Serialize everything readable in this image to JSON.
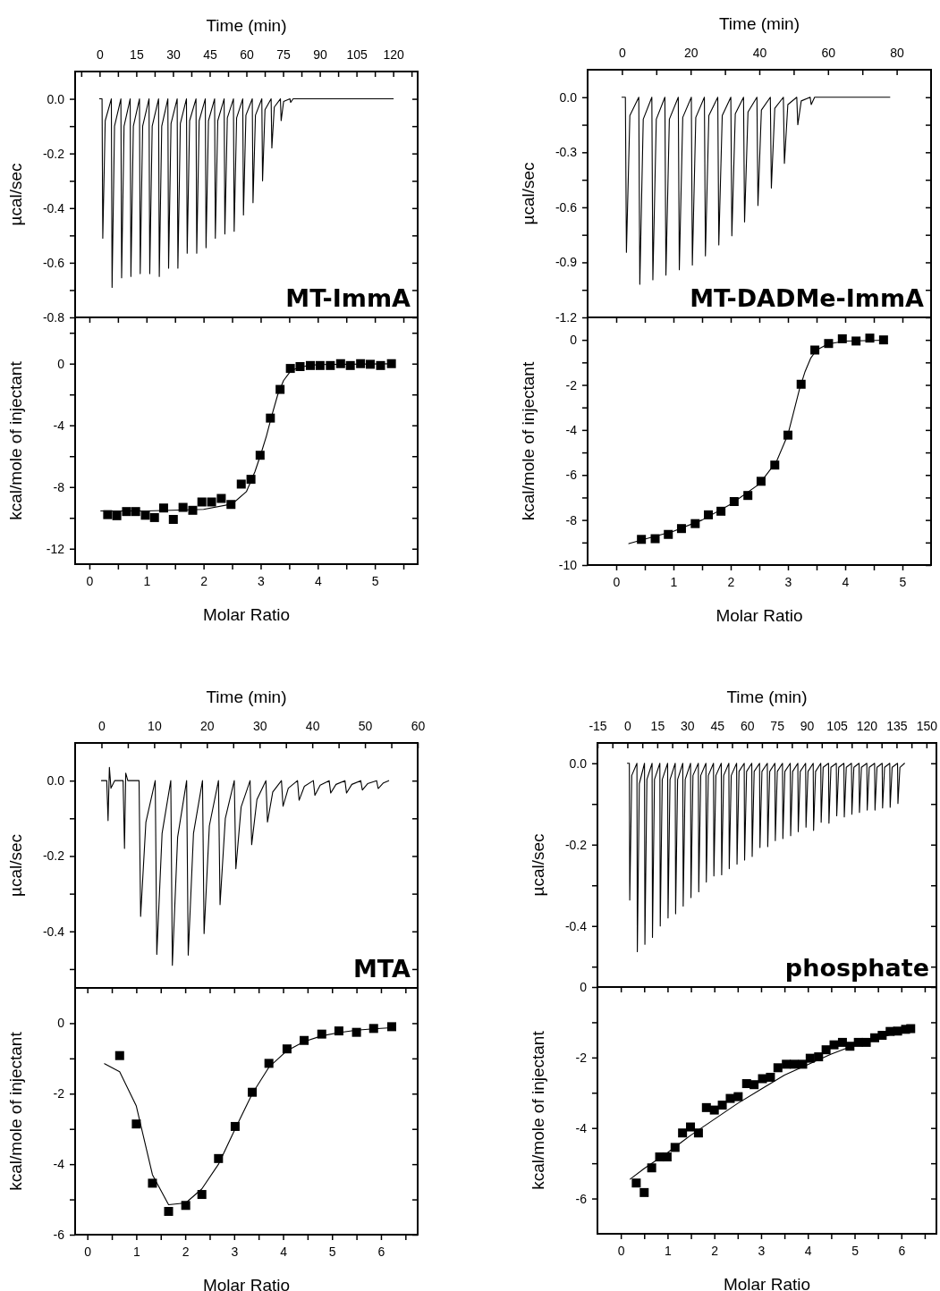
{
  "chart_data": [
    {
      "type": "line",
      "xlabel": "Time (min)",
      "ylabel": "µcal/sec",
      "annotations": [
        "MT-ImmA"
      ],
      "xlim": [
        -10,
        130
      ],
      "xticks": [
        0,
        15,
        30,
        45,
        60,
        75,
        90,
        105,
        120,
        {
          "value": 7.5,
          "label": null
        },
        {
          "value": 22.5,
          "label": null
        },
        {
          "value": 37.5,
          "label": null
        },
        {
          "value": 52.5,
          "label": null
        },
        {
          "value": 67.5,
          "label": null
        },
        {
          "value": 82.5,
          "label": null
        },
        {
          "value": 97.5,
          "label": null
        },
        {
          "value": 112.5,
          "label": null
        },
        {
          "value": 127.5,
          "label": null
        },
        {
          "value": -7.5,
          "label": null
        }
      ],
      "ylim": [
        -0.8,
        0.1
      ],
      "yticks": [
        {
          "value": 0,
          "label": "0.0"
        },
        -0.2,
        -0.4,
        -0.6,
        -0.8,
        {
          "value": -0.1,
          "label": null
        },
        {
          "value": -0.3,
          "label": null
        },
        {
          "value": -0.5,
          "label": null
        },
        {
          "value": -0.7,
          "label": null
        }
      ],
      "series": [
        {
          "color": "#000000",
          "x": [
            0,
            1.0,
            1.3,
            2.3,
            4.8,
            5.1,
            6.1,
            8.7,
            9.0,
            10.0,
            12.5,
            12.8,
            13.8,
            16.3,
            16.6,
            17.6,
            20.2,
            20.5,
            21.5,
            24.1,
            24.4,
            25.4,
            27.9,
            28.2,
            29.2,
            31.7,
            32.0,
            33.0,
            35.5,
            35.8,
            36.8,
            39.4,
            39.7,
            40.7,
            43.2,
            43.5,
            44.5,
            47.0,
            47.3,
            48.3,
            50.9,
            51.2,
            52.2,
            54.7,
            55.0,
            56.0,
            58.5,
            58.8,
            59.8,
            62.4,
            62.7,
            63.7,
            66.3,
            66.6,
            67.6,
            70.1,
            70.4,
            71.4,
            73.9,
            74.2,
            75.2,
            77.8,
            78.1,
            79.1,
            120
          ],
          "values": [
            0,
            0,
            -0.51,
            -0.08,
            0,
            -0.69,
            -0.1,
            0,
            -0.655,
            -0.1,
            0,
            -0.65,
            -0.1,
            0,
            -0.64,
            -0.1,
            0,
            -0.64,
            -0.1,
            0,
            -0.65,
            -0.1,
            0,
            -0.62,
            -0.09,
            0,
            -0.62,
            -0.09,
            0,
            -0.565,
            -0.08,
            0,
            -0.565,
            -0.08,
            0,
            -0.545,
            -0.08,
            0,
            -0.51,
            -0.08,
            0,
            -0.495,
            -0.07,
            0,
            -0.485,
            -0.07,
            0,
            -0.425,
            -0.06,
            0,
            -0.38,
            -0.06,
            0,
            -0.3,
            -0.04,
            0,
            -0.18,
            -0.03,
            0,
            -0.08,
            -0.01,
            0,
            -0.013,
            0,
            0
          ]
        }
      ]
    },
    {
      "type": "scatter",
      "xlabel": "Molar Ratio",
      "ylabel": "kcal/mole of injectant",
      "xlim": [
        -0.25,
        5.75
      ],
      "xticks": [
        0,
        1,
        2,
        3,
        4,
        5,
        {
          "value": 0.5,
          "label": null
        },
        {
          "value": 1.5,
          "label": null
        },
        {
          "value": 2.5,
          "label": null
        },
        {
          "value": 3.5,
          "label": null
        },
        {
          "value": 4.5,
          "label": null
        },
        {
          "value": 5.5,
          "label": null
        }
      ],
      "ylim": [
        -13,
        3
      ],
      "yticks": [
        0,
        -4,
        -8,
        -12,
        {
          "value": 2,
          "label": null
        },
        {
          "value": -2,
          "label": null
        },
        {
          "value": -6,
          "label": null
        },
        {
          "value": -10,
          "label": null
        }
      ],
      "series": [
        {
          "marker": "square",
          "color": "#000000",
          "x": [
            0.32,
            0.48,
            0.65,
            0.81,
            0.98,
            1.14,
            1.3,
            1.47,
            1.64,
            1.81,
            1.97,
            2.14,
            2.31,
            2.48,
            2.66,
            2.83,
            2.99,
            3.17,
            3.34,
            3.52,
            3.69,
            3.87,
            4.04,
            4.22,
            4.4,
            4.57,
            4.75,
            4.92,
            5.1,
            5.29
          ],
          "values": [
            -9.79,
            -9.86,
            -9.59,
            -9.59,
            -9.83,
            -9.98,
            -9.36,
            -10.1,
            -9.32,
            -9.51,
            -8.97,
            -8.97,
            -8.74,
            -9.13,
            -7.81,
            -7.5,
            -5.94,
            -3.53,
            -1.67,
            -0.31,
            -0.19,
            -0.12,
            -0.12,
            -0.12,
            0,
            -0.12,
            0,
            -0.04,
            -0.12,
            0
          ]
        },
        {
          "type": "line",
          "color": "#000000",
          "x": [
            0.2,
            1.0,
            2.0,
            2.5,
            2.75,
            2.9,
            3.0,
            3.1,
            3.2,
            3.3,
            3.4,
            3.5,
            3.6,
            3.8,
            4.0,
            5.3
          ],
          "values": [
            -9.55,
            -9.55,
            -9.45,
            -9.1,
            -8.3,
            -7.0,
            -5.9,
            -4.7,
            -3.3,
            -2.0,
            -1.1,
            -0.6,
            -0.35,
            -0.15,
            -0.06,
            -0.01
          ]
        }
      ]
    },
    {
      "type": "line",
      "xlabel": "Time (min)",
      "ylabel": "µcal/sec",
      "annotations": [
        "MT-DADMe-ImmA"
      ],
      "xlim": [
        -10,
        90
      ],
      "xticks": [
        0,
        20,
        40,
        60,
        80,
        {
          "value": 10,
          "label": null
        },
        {
          "value": 30,
          "label": null
        },
        {
          "value": 50,
          "label": null
        },
        {
          "value": 70,
          "label": null
        }
      ],
      "ylim": [
        -1.2,
        0.15
      ],
      "yticks": [
        {
          "value": 0,
          "label": "0.0"
        },
        -0.3,
        -0.6,
        -0.9,
        -1.2,
        {
          "value": -0.15,
          "label": null
        },
        {
          "value": -0.45,
          "label": null
        },
        {
          "value": -0.75,
          "label": null
        },
        {
          "value": -1.05,
          "label": null
        }
      ],
      "series": [
        {
          "color": "#000000",
          "x": [
            0,
            1.0,
            1.3,
            2.3,
            4.9,
            5.2,
            6.2,
            8.7,
            9.0,
            10.0,
            12.5,
            12.8,
            13.8,
            16.4,
            16.7,
            17.7,
            20.2,
            20.5,
            21.5,
            24.0,
            24.3,
            25.3,
            27.9,
            28.2,
            29.2,
            31.7,
            32.0,
            33.0,
            35.4,
            35.7,
            36.7,
            39.3,
            39.6,
            40.6,
            43.2,
            43.5,
            44.5,
            47.0,
            47.3,
            48.3,
            50.9,
            51.2,
            52.2,
            54.8,
            55.1,
            56.1,
            78
          ],
          "values": [
            0,
            0,
            -0.845,
            -0.1,
            0,
            -1.02,
            -0.12,
            0,
            -0.995,
            -0.12,
            0,
            -0.97,
            -0.12,
            0,
            -0.94,
            -0.11,
            0,
            -0.915,
            -0.11,
            0,
            -0.865,
            -0.1,
            0,
            -0.805,
            -0.1,
            0,
            -0.755,
            -0.09,
            0,
            -0.68,
            -0.08,
            0,
            -0.59,
            -0.07,
            0,
            -0.495,
            -0.06,
            0,
            -0.36,
            -0.04,
            0,
            -0.15,
            -0.02,
            0,
            -0.04,
            0,
            0
          ]
        }
      ]
    },
    {
      "type": "scatter",
      "xlabel": "Molar Ratio",
      "ylabel": "kcal/mole of injectant",
      "xlim": [
        -0.5,
        5.5
      ],
      "xticks": [
        0,
        1,
        2,
        3,
        4,
        5,
        {
          "value": 0.5,
          "label": null
        },
        {
          "value": 1.5,
          "label": null
        },
        {
          "value": 2.5,
          "label": null
        },
        {
          "value": 3.5,
          "label": null
        },
        {
          "value": 4.5,
          "label": null
        }
      ],
      "ylim": [
        -10,
        1
      ],
      "yticks": [
        0,
        -2,
        -4,
        -6,
        -8,
        -10,
        {
          "value": -1,
          "label": null
        },
        {
          "value": -3,
          "label": null
        },
        {
          "value": -5,
          "label": null
        },
        {
          "value": -7,
          "label": null
        },
        {
          "value": -9,
          "label": null
        }
      ],
      "series": [
        {
          "marker": "square",
          "color": "#000000",
          "x": [
            0.44,
            0.68,
            0.91,
            1.14,
            1.38,
            1.61,
            1.83,
            2.06,
            2.3,
            2.53,
            2.77,
            3.0,
            3.23,
            3.47,
            3.71,
            3.95,
            4.19,
            4.43,
            4.67
          ],
          "values": [
            -8.86,
            -8.83,
            -8.64,
            -8.38,
            -8.16,
            -7.77,
            -7.61,
            -7.18,
            -6.91,
            -6.28,
            -5.56,
            -4.23,
            -1.97,
            -0.45,
            -0.16,
            0.05,
            -0.05,
            0.08,
            0
          ]
        },
        {
          "type": "line",
          "color": "#000000",
          "x": [
            0.22,
            0.5,
            1.0,
            1.5,
            2.0,
            2.5,
            2.8,
            3.0,
            3.1,
            3.2,
            3.3,
            3.4,
            3.5,
            3.7,
            4.0,
            4.7
          ],
          "values": [
            -9.05,
            -8.85,
            -8.5,
            -8.0,
            -7.3,
            -6.4,
            -5.4,
            -4.2,
            -3.2,
            -2.2,
            -1.4,
            -0.8,
            -0.45,
            -0.18,
            -0.05,
            -0.01
          ]
        }
      ]
    },
    {
      "type": "line",
      "xlabel": "Time (min)",
      "ylabel": "µcal/sec",
      "annotations": [
        "MTA"
      ],
      "xlim": [
        -5,
        60
      ],
      "xticks": [
        0,
        10,
        20,
        30,
        40,
        50,
        60,
        {
          "value": 5,
          "label": null
        },
        {
          "value": 15,
          "label": null
        },
        {
          "value": 25,
          "label": null
        },
        {
          "value": 35,
          "label": null
        },
        {
          "value": 45,
          "label": null
        },
        {
          "value": 55,
          "label": null
        }
      ],
      "ylim": [
        -0.55,
        0.1
      ],
      "yticks": [
        {
          "value": 0,
          "label": "0.0"
        },
        -0.2,
        -0.4,
        {
          "value": -0.1,
          "label": null
        },
        {
          "value": -0.3,
          "label": null
        },
        {
          "value": -0.5,
          "label": null
        }
      ],
      "series": [
        {
          "color": "#000000",
          "x": [
            0,
            1.0,
            1.25,
            1.5,
            1.8,
            2.5,
            4.1,
            4.37,
            4.6,
            5.0,
            7.13,
            7.43,
            8.43,
            10.2,
            10.5,
            11.5,
            13.15,
            13.45,
            14.45,
            16.16,
            16.46,
            17.46,
            19.17,
            19.47,
            20.47,
            22.2,
            22.5,
            23.5,
            25.2,
            25.5,
            26.5,
            28.2,
            28.5,
            29.5,
            31.2,
            31.5,
            32.5,
            34.15,
            34.45,
            35.45,
            37.2,
            37.5,
            38.5,
            40.2,
            40.5,
            41.5,
            43.2,
            43.5,
            44.5,
            46.2,
            46.5,
            47.5,
            49.2,
            49.5,
            50.5,
            52.2,
            52.5,
            53.5,
            54.5
          ],
          "values": [
            0,
            0,
            -0.106,
            0.035,
            -0.02,
            0,
            0,
            -0.18,
            0.02,
            0,
            0,
            -0.36,
            -0.11,
            0,
            -0.461,
            -0.14,
            0,
            -0.49,
            -0.15,
            0,
            -0.463,
            -0.14,
            0,
            -0.406,
            -0.12,
            0,
            -0.329,
            -0.1,
            0,
            -0.234,
            -0.07,
            0,
            -0.17,
            -0.05,
            0,
            -0.11,
            -0.03,
            0,
            -0.068,
            -0.02,
            0,
            -0.052,
            -0.015,
            0,
            -0.039,
            -0.012,
            0,
            -0.033,
            -0.01,
            0,
            -0.033,
            -0.01,
            0,
            -0.025,
            -0.008,
            0,
            -0.021,
            -0.006,
            0
          ]
        }
      ]
    },
    {
      "type": "scatter",
      "xlabel": "Molar Ratio",
      "ylabel": "kcal/mole of injectant",
      "xlim": [
        -0.25,
        6.75
      ],
      "xticks": [
        0,
        1,
        2,
        3,
        4,
        5,
        6,
        {
          "value": 0.5,
          "label": null
        },
        {
          "value": 1.5,
          "label": null
        },
        {
          "value": 2.5,
          "label": null
        },
        {
          "value": 3.5,
          "label": null
        },
        {
          "value": 4.5,
          "label": null
        },
        {
          "value": 5.5,
          "label": null
        },
        {
          "value": 6.5,
          "label": null
        }
      ],
      "ylim": [
        -6,
        1
      ],
      "yticks": [
        0,
        -2,
        -4,
        -6,
        {
          "value": -1,
          "label": null
        },
        {
          "value": -3,
          "label": null
        },
        {
          "value": -5,
          "label": null
        }
      ],
      "series": [
        {
          "marker": "square",
          "color": "#000000",
          "x": [
            0.66,
            1.0,
            1.33,
            1.66,
            2.01,
            2.34,
            2.68,
            3.02,
            3.37,
            3.71,
            4.08,
            4.43,
            4.79,
            5.14,
            5.5,
            5.85,
            6.22
          ],
          "values": [
            -0.92,
            -2.86,
            -4.54,
            -5.34,
            -5.17,
            -4.86,
            -3.84,
            -2.93,
            -1.96,
            -1.14,
            -0.73,
            -0.49,
            -0.31,
            -0.22,
            -0.26,
            -0.15,
            -0.1
          ]
        },
        {
          "type": "line",
          "color": "#000000",
          "x": [
            0.35,
            0.66,
            1.0,
            1.33,
            1.66,
            2.01,
            2.34,
            2.68,
            3.02,
            3.37,
            3.71,
            4.08,
            4.43,
            4.79,
            5.14,
            5.5,
            5.85,
            6.22
          ],
          "values": [
            -1.15,
            -1.38,
            -2.35,
            -4.3,
            -5.15,
            -5.1,
            -4.7,
            -4.0,
            -3.0,
            -2.0,
            -1.25,
            -0.78,
            -0.52,
            -0.36,
            -0.27,
            -0.2,
            -0.16,
            -0.13
          ]
        }
      ]
    },
    {
      "type": "line",
      "xlabel": "Time (min)",
      "ylabel": "µcal/sec",
      "annotations": [
        "phosphate"
      ],
      "xlim": [
        -15,
        155
      ],
      "xticks": [
        -15,
        0,
        15,
        30,
        45,
        60,
        75,
        90,
        105,
        120,
        135,
        150,
        {
          "value": -7.5,
          "label": null
        },
        {
          "value": 7.5,
          "label": null
        },
        {
          "value": 22.5,
          "label": null
        },
        {
          "value": 37.5,
          "label": null
        },
        {
          "value": 52.5,
          "label": null
        },
        {
          "value": 67.5,
          "label": null
        },
        {
          "value": 82.5,
          "label": null
        },
        {
          "value": 97.5,
          "label": null
        },
        {
          "value": 112.5,
          "label": null
        },
        {
          "value": 127.5,
          "label": null
        },
        {
          "value": 142.5,
          "label": null
        }
      ],
      "ylim": [
        -0.55,
        0.05
      ],
      "yticks": [
        {
          "value": 0,
          "label": "0.0"
        },
        -0.2,
        -0.4,
        {
          "value": -0.1,
          "label": null
        },
        {
          "value": -0.3,
          "label": null
        },
        {
          "value": -0.5,
          "label": null
        }
      ],
      "series": [
        {
          "color": "#000000",
          "x": [
            0,
            1.0,
            1.2,
            2.2,
            4.8,
            5.0,
            6.0,
            8.6,
            8.8,
            9.8,
            12.4,
            12.6,
            13.6,
            16.3,
            16.5,
            17.5,
            20.2,
            20.4,
            21.4,
            24.0,
            24.2,
            25.2,
            27.8,
            28.0,
            29.0,
            31.7,
            31.9,
            32.9,
            35.6,
            35.8,
            36.8,
            39.4,
            39.6,
            40.6,
            43.2,
            43.4,
            44.4,
            47.1,
            47.3,
            48.3,
            50.9,
            51.1,
            52.1,
            54.8,
            55.0,
            56.0,
            58.6,
            58.8,
            59.8,
            62.4,
            62.6,
            63.6,
            66.3,
            66.5,
            67.5,
            70.2,
            70.4,
            71.4,
            74.0,
            74.2,
            75.2,
            77.8,
            78.0,
            79.0,
            81.7,
            81.9,
            82.9,
            85.5,
            85.7,
            86.7,
            89.4,
            89.6,
            90.6,
            93.2,
            93.4,
            94.4,
            97.0,
            97.2,
            98.2,
            100.9,
            101.1,
            102.1,
            104.8,
            105.0,
            106.0,
            108.6,
            108.8,
            109.8,
            112.4,
            112.6,
            113.6,
            116.2,
            116.4,
            117.4,
            120.1,
            120.3,
            121.3,
            124.0,
            124.2,
            125.2,
            127.8,
            128.0,
            129.0,
            131.6,
            131.8,
            132.8,
            135.5,
            135.7,
            136.7,
            139
          ],
          "values": [
            0,
            0,
            -0.336,
            -0.03,
            0,
            -0.463,
            -0.05,
            0,
            -0.445,
            -0.04,
            0,
            -0.428,
            -0.04,
            0,
            -0.4,
            -0.04,
            0,
            -0.38,
            -0.04,
            0,
            -0.37,
            -0.04,
            0,
            -0.351,
            -0.04,
            0,
            -0.33,
            -0.03,
            0,
            -0.316,
            -0.03,
            0,
            -0.292,
            -0.03,
            0,
            -0.277,
            -0.03,
            0,
            -0.274,
            -0.03,
            0,
            -0.259,
            -0.03,
            0,
            -0.248,
            -0.02,
            0,
            -0.238,
            -0.02,
            0,
            -0.229,
            -0.02,
            0,
            -0.207,
            -0.02,
            0,
            -0.205,
            -0.02,
            0,
            -0.19,
            -0.02,
            0,
            -0.185,
            -0.02,
            0,
            -0.178,
            -0.02,
            0,
            -0.168,
            -0.02,
            0,
            -0.157,
            -0.02,
            0,
            -0.165,
            -0.02,
            0,
            -0.145,
            -0.01,
            0,
            -0.147,
            -0.01,
            0,
            -0.129,
            -0.01,
            0,
            -0.132,
            -0.01,
            0,
            -0.125,
            -0.01,
            0,
            -0.121,
            -0.01,
            0,
            -0.115,
            -0.01,
            0,
            -0.115,
            -0.01,
            0,
            -0.11,
            -0.01,
            0,
            -0.108,
            -0.01,
            0,
            -0.099,
            -0.01,
            0
          ]
        }
      ]
    },
    {
      "type": "scatter",
      "xlabel": "Molar Ratio",
      "ylabel": "kcal/mole of injectant",
      "xlim": [
        -0.5,
        6.75
      ],
      "xticks": [
        0,
        1,
        2,
        3,
        4,
        5,
        6,
        {
          "value": 0.5,
          "label": null
        },
        {
          "value": 1.5,
          "label": null
        },
        {
          "value": 2.5,
          "label": null
        },
        {
          "value": 3.5,
          "label": null
        },
        {
          "value": 4.5,
          "label": null
        },
        {
          "value": 5.5,
          "label": null
        },
        {
          "value": 6.5,
          "label": null
        }
      ],
      "ylim": [
        -7,
        0
      ],
      "yticks": [
        0,
        -2,
        -4,
        -6,
        {
          "value": -1,
          "label": null
        },
        {
          "value": -3,
          "label": null
        },
        {
          "value": -5,
          "label": null
        }
      ],
      "series": [
        {
          "marker": "square",
          "color": "#000000",
          "x": [
            0.33,
            0.5,
            0.66,
            0.83,
            0.99,
            1.16,
            1.32,
            1.49,
            1.66,
            1.83,
            2.0,
            2.17,
            2.34,
            2.51,
            2.69,
            2.85,
            3.03,
            3.2,
            3.36,
            3.54,
            3.71,
            3.89,
            4.05,
            4.23,
            4.39,
            4.56,
            4.74,
            4.9,
            5.08,
            5.25,
            5.43,
            5.59,
            5.76,
            5.92,
            6.09,
            6.2
          ],
          "values": [
            -5.56,
            -5.83,
            -5.13,
            -4.82,
            -4.82,
            -4.55,
            -4.14,
            -3.97,
            -4.14,
            -3.42,
            -3.49,
            -3.35,
            -3.16,
            -3.11,
            -2.74,
            -2.77,
            -2.6,
            -2.56,
            -2.29,
            -2.19,
            -2.19,
            -2.19,
            -2.02,
            -1.98,
            -1.78,
            -1.64,
            -1.57,
            -1.68,
            -1.57,
            -1.57,
            -1.44,
            -1.37,
            -1.26,
            -1.25,
            -1.2,
            -1.18
          ]
        },
        {
          "type": "line",
          "color": "#000000",
          "x": [
            0.2,
            0.5,
            1.0,
            1.5,
            2.0,
            2.5,
            3.0,
            3.5,
            4.0,
            4.5,
            5.0,
            5.5,
            6.0,
            6.2
          ],
          "values": [
            -5.45,
            -5.15,
            -4.7,
            -4.2,
            -3.75,
            -3.3,
            -2.9,
            -2.5,
            -2.2,
            -1.9,
            -1.65,
            -1.45,
            -1.27,
            -1.2
          ]
        }
      ]
    }
  ]
}
